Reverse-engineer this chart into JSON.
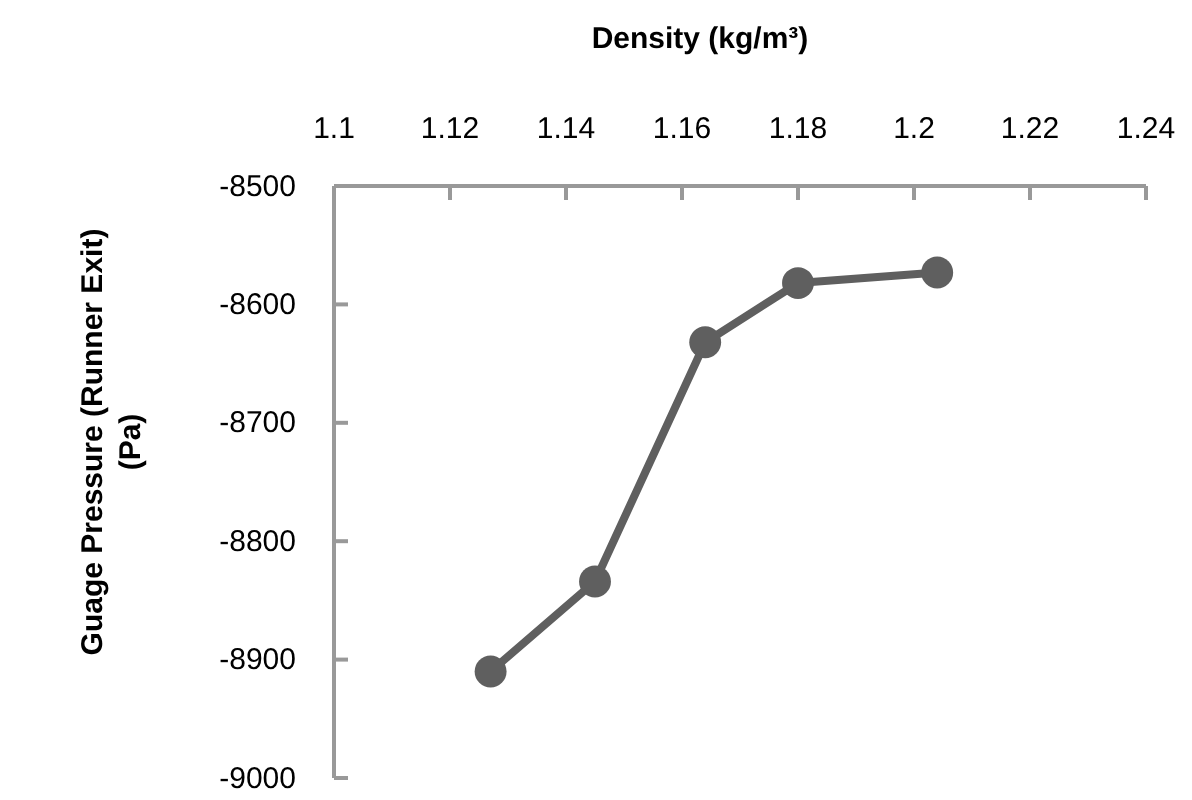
{
  "chart_data": {
    "type": "line",
    "xlabel": "Density (kg/m³)",
    "ylabel": "Guage Pressure (Runner Exit) (Pa)",
    "x": [
      1.127,
      1.145,
      1.164,
      1.18,
      1.204
    ],
    "series": [
      {
        "color": "#5f5f5f",
        "values": [
          -8910,
          -8834,
          -8632,
          -8582,
          -8573
        ]
      }
    ],
    "xlim": [
      1.1,
      1.24
    ],
    "xticks": [
      1.1,
      1.12,
      1.14,
      1.16,
      1.18,
      1.2,
      1.22,
      1.24
    ],
    "ylim": [
      -9000,
      -8500
    ],
    "yticks": [
      -9000,
      -8900,
      -8800,
      -8700,
      -8600,
      -8500
    ],
    "marker": "circle",
    "line_style": "solid"
  }
}
